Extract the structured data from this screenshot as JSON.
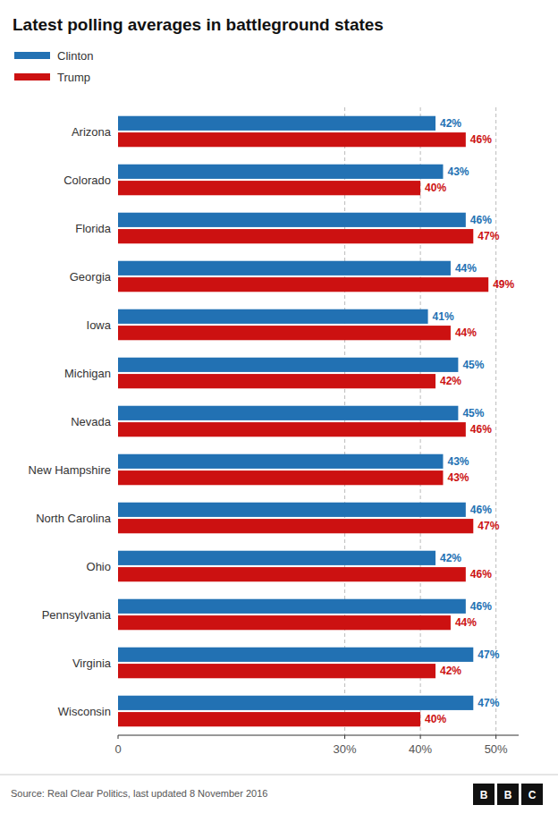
{
  "chart_data": {
    "type": "bar",
    "orientation": "horizontal",
    "title": "Latest polling averages in battleground states",
    "categories": [
      "Arizona",
      "Colorado",
      "Florida",
      "Georgia",
      "Iowa",
      "Michigan",
      "Nevada",
      "New Hampshire",
      "North Carolina",
      "Ohio",
      "Pennsylvania",
      "Virginia",
      "Wisconsin"
    ],
    "series": [
      {
        "name": "Clinton",
        "color": "#2271b3",
        "values": [
          42,
          43,
          46,
          44,
          41,
          45,
          45,
          43,
          46,
          42,
          46,
          47,
          47
        ],
        "value_labels": [
          "42%",
          "43%",
          "46%",
          "44%",
          "41%",
          "45%",
          "45%",
          "43%",
          "46%",
          "42%",
          "46%",
          "47%",
          "47%"
        ]
      },
      {
        "name": "Trump",
        "color": "#cc1111",
        "values": [
          46,
          40,
          47,
          49,
          44,
          42,
          46,
          43,
          47,
          46,
          44,
          42,
          40
        ],
        "value_labels": [
          "46%",
          "40%",
          "47%",
          "49%",
          "44%",
          "42%",
          "46%",
          "43%",
          "47%",
          "46%",
          "44%",
          "42%",
          "40%"
        ]
      }
    ],
    "xlim": [
      0,
      53
    ],
    "xticks": [
      0,
      {
        "value": 30,
        "label": "30%"
      },
      {
        "value": 40,
        "label": "40%"
      },
      {
        "value": 50,
        "label": "50%"
      }
    ],
    "grid": true,
    "legend": "upper left",
    "data_labels": true,
    "annotations": [
      "Source: Real Clear Politics, last updated 8 November 2016",
      "BBC"
    ]
  }
}
